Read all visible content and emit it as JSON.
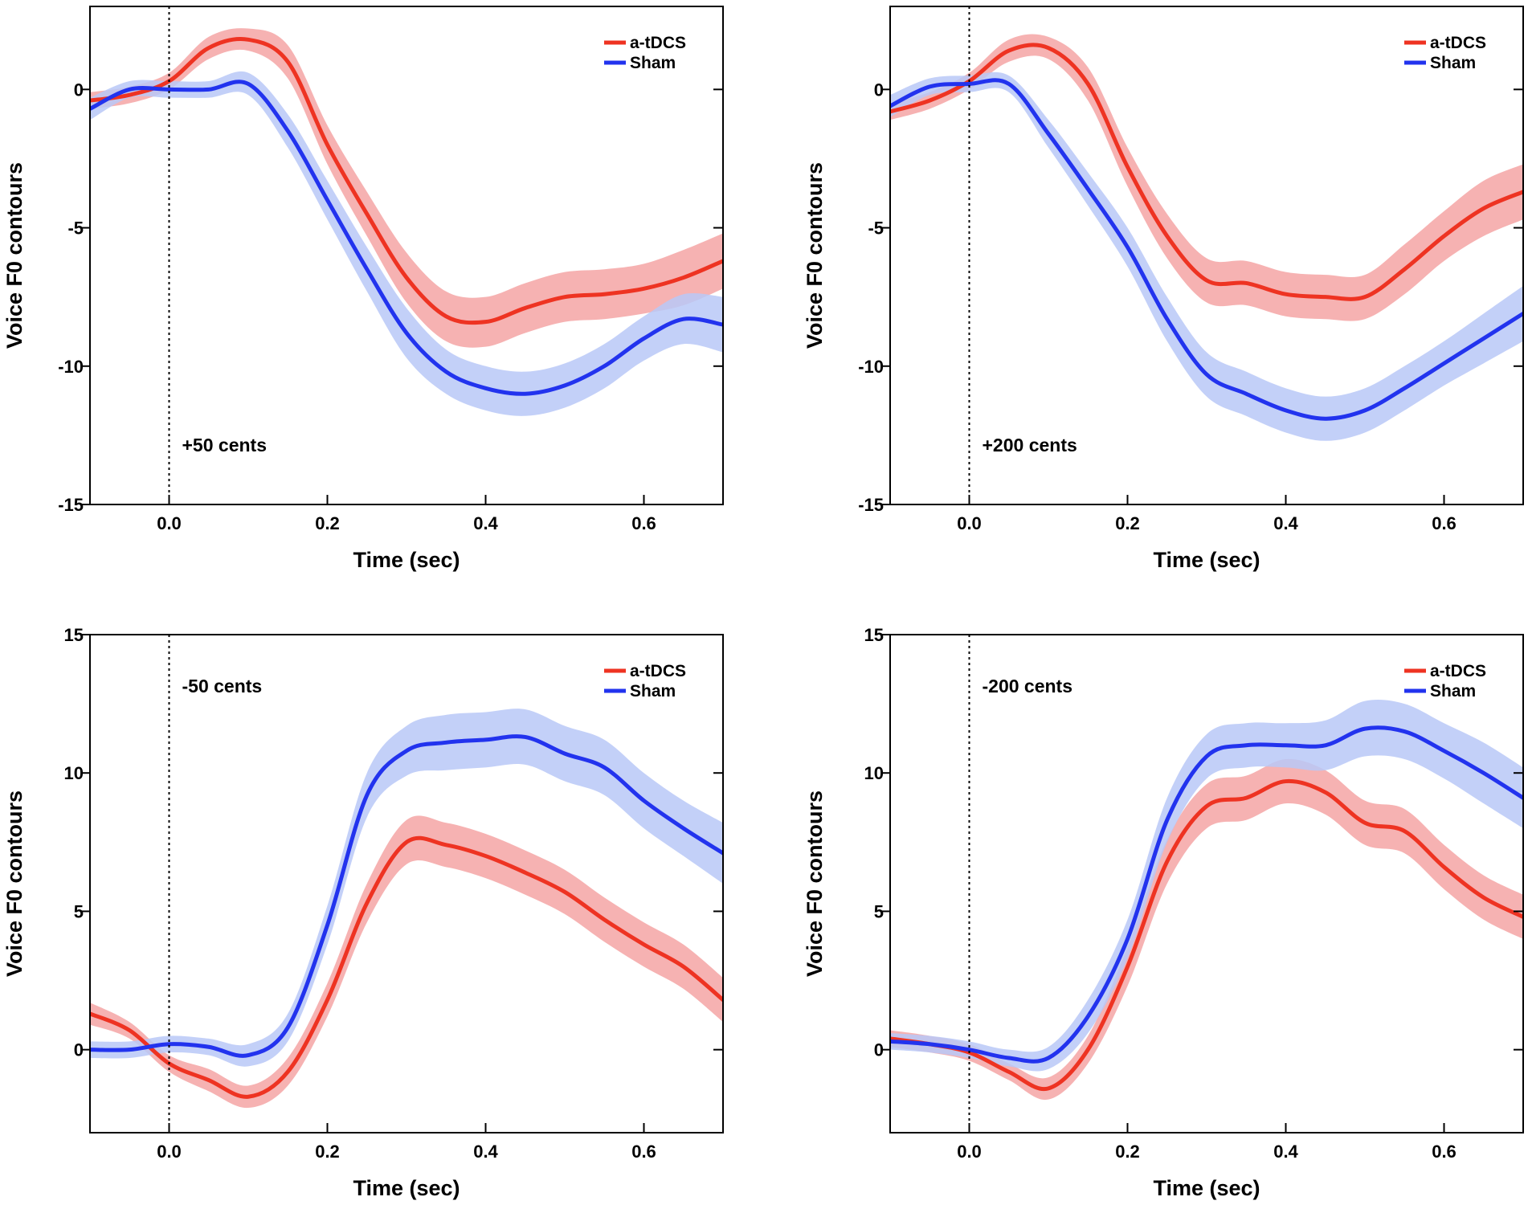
{
  "figure_title": "",
  "chart_data": [
    {
      "type": "line",
      "title": "",
      "annotation": "+50 cents",
      "xlabel": "Time (sec)",
      "ylabel": "Voice F0 contours",
      "xlim": [
        -0.1,
        0.7
      ],
      "ylim": [
        -15,
        3
      ],
      "xticks": [
        0.0,
        0.2,
        0.4,
        0.6
      ],
      "xtick_labels": [
        "0.0",
        "0.2",
        "0.4",
        "0.6"
      ],
      "yticks": [
        -15,
        -10,
        -5,
        0
      ],
      "ytick_labels": [
        "-15",
        "-10",
        "-5",
        "0"
      ],
      "onset_line_x": 0.0,
      "legend_position": "top-right",
      "series": [
        {
          "name": "a-tDCS",
          "color": "#ee3322",
          "band_color": "#f5a5a5",
          "x": [
            -0.1,
            -0.05,
            0.0,
            0.05,
            0.1,
            0.15,
            0.2,
            0.25,
            0.3,
            0.35,
            0.4,
            0.45,
            0.5,
            0.55,
            0.6,
            0.65,
            0.7
          ],
          "y": [
            -0.4,
            -0.2,
            0.3,
            1.5,
            1.8,
            1.0,
            -2.0,
            -4.5,
            -6.8,
            -8.2,
            -8.4,
            -7.9,
            -7.5,
            -7.4,
            -7.2,
            -6.8,
            -6.2
          ],
          "sem": [
            0.3,
            0.3,
            0.3,
            0.4,
            0.4,
            0.6,
            0.7,
            0.8,
            0.9,
            0.9,
            0.9,
            0.9,
            0.9,
            0.9,
            0.9,
            1.0,
            1.0
          ]
        },
        {
          "name": "Sham",
          "color": "#2233ee",
          "band_color": "#b8c8f7",
          "x": [
            -0.1,
            -0.05,
            0.0,
            0.05,
            0.1,
            0.15,
            0.2,
            0.25,
            0.3,
            0.35,
            0.4,
            0.45,
            0.5,
            0.55,
            0.6,
            0.65,
            0.7
          ],
          "y": [
            -0.7,
            0.0,
            0.0,
            0.0,
            0.2,
            -1.5,
            -4.0,
            -6.5,
            -8.8,
            -10.2,
            -10.8,
            -11.0,
            -10.7,
            -10.0,
            -9.0,
            -8.3,
            -8.5
          ],
          "sem": [
            0.4,
            0.3,
            0.3,
            0.3,
            0.4,
            0.6,
            0.7,
            0.8,
            0.9,
            0.8,
            0.8,
            0.8,
            0.8,
            0.8,
            0.8,
            0.9,
            1.0
          ]
        }
      ]
    },
    {
      "type": "line",
      "title": "",
      "annotation": "+200 cents",
      "xlabel": "Time (sec)",
      "ylabel": "Voice F0 contours",
      "xlim": [
        -0.1,
        0.7
      ],
      "ylim": [
        -15,
        3
      ],
      "xticks": [
        0.0,
        0.2,
        0.4,
        0.6
      ],
      "xtick_labels": [
        "0.0",
        "0.2",
        "0.4",
        "0.6"
      ],
      "yticks": [
        -15,
        -10,
        -5,
        0
      ],
      "ytick_labels": [
        "-15",
        "-10",
        "-5",
        "0"
      ],
      "onset_line_x": 0.0,
      "legend_position": "top-right",
      "series": [
        {
          "name": "a-tDCS",
          "color": "#ee3322",
          "band_color": "#f5a5a5",
          "x": [
            -0.1,
            -0.05,
            0.0,
            0.05,
            0.1,
            0.15,
            0.2,
            0.25,
            0.3,
            0.35,
            0.4,
            0.45,
            0.5,
            0.55,
            0.6,
            0.65,
            0.7
          ],
          "y": [
            -0.8,
            -0.4,
            0.3,
            1.4,
            1.5,
            0.2,
            -2.8,
            -5.3,
            -6.9,
            -7.0,
            -7.4,
            -7.5,
            -7.5,
            -6.5,
            -5.3,
            -4.3,
            -3.7
          ],
          "sem": [
            0.3,
            0.3,
            0.3,
            0.4,
            0.4,
            0.6,
            0.7,
            0.8,
            0.8,
            0.8,
            0.8,
            0.8,
            0.8,
            0.9,
            0.9,
            1.0,
            1.0
          ]
        },
        {
          "name": "Sham",
          "color": "#2233ee",
          "band_color": "#b8c8f7",
          "x": [
            -0.1,
            -0.05,
            0.0,
            0.05,
            0.1,
            0.15,
            0.2,
            0.25,
            0.3,
            0.35,
            0.4,
            0.45,
            0.5,
            0.55,
            0.6,
            0.65,
            0.7
          ],
          "y": [
            -0.6,
            0.1,
            0.2,
            0.2,
            -1.6,
            -3.6,
            -5.7,
            -8.3,
            -10.3,
            -11.0,
            -11.6,
            -11.9,
            -11.6,
            -10.8,
            -9.9,
            -9.0,
            -8.1
          ],
          "sem": [
            0.4,
            0.3,
            0.3,
            0.3,
            0.5,
            0.6,
            0.7,
            0.8,
            0.8,
            0.8,
            0.8,
            0.8,
            0.8,
            0.8,
            0.8,
            0.9,
            1.0
          ]
        }
      ]
    },
    {
      "type": "line",
      "title": "",
      "annotation": "-50 cents",
      "xlabel": "Time (sec)",
      "ylabel": "Voice F0 contours",
      "xlim": [
        -0.1,
        0.7
      ],
      "ylim": [
        -3,
        15
      ],
      "xticks": [
        0.0,
        0.2,
        0.4,
        0.6
      ],
      "xtick_labels": [
        "0.0",
        "0.2",
        "0.4",
        "0.6"
      ],
      "yticks": [
        0,
        5,
        10,
        15
      ],
      "ytick_labels": [
        "0",
        "5",
        "10",
        "15"
      ],
      "onset_line_x": 0.0,
      "legend_position": "top-right",
      "series": [
        {
          "name": "a-tDCS",
          "color": "#ee3322",
          "band_color": "#f5a5a5",
          "x": [
            -0.1,
            -0.05,
            0.0,
            0.05,
            0.1,
            0.15,
            0.2,
            0.25,
            0.3,
            0.35,
            0.4,
            0.45,
            0.5,
            0.55,
            0.6,
            0.65,
            0.7
          ],
          "y": [
            1.3,
            0.7,
            -0.5,
            -1.1,
            -1.7,
            -0.8,
            1.8,
            5.3,
            7.5,
            7.4,
            7.0,
            6.4,
            5.7,
            4.7,
            3.8,
            3.0,
            1.8
          ],
          "sem": [
            0.4,
            0.3,
            0.3,
            0.4,
            0.4,
            0.5,
            0.6,
            0.7,
            0.8,
            0.8,
            0.8,
            0.8,
            0.8,
            0.8,
            0.8,
            0.8,
            0.8
          ]
        },
        {
          "name": "Sham",
          "color": "#2233ee",
          "band_color": "#b8c8f7",
          "x": [
            -0.1,
            -0.05,
            0.0,
            0.05,
            0.1,
            0.15,
            0.2,
            0.25,
            0.3,
            0.35,
            0.4,
            0.45,
            0.5,
            0.55,
            0.6,
            0.65,
            0.7
          ],
          "y": [
            0.0,
            0.0,
            0.2,
            0.1,
            -0.2,
            0.8,
            4.5,
            9.2,
            10.8,
            11.1,
            11.2,
            11.3,
            10.7,
            10.2,
            9.0,
            8.0,
            7.1
          ],
          "sem": [
            0.3,
            0.3,
            0.3,
            0.3,
            0.4,
            0.5,
            0.7,
            0.8,
            0.9,
            1.0,
            1.0,
            1.0,
            1.0,
            1.0,
            1.0,
            1.0,
            1.1
          ]
        }
      ]
    },
    {
      "type": "line",
      "title": "",
      "annotation": "-200 cents",
      "xlabel": "Time (sec)",
      "ylabel": "Voice F0 contours",
      "xlim": [
        -0.1,
        0.7
      ],
      "ylim": [
        -3,
        15
      ],
      "xticks": [
        0.0,
        0.2,
        0.4,
        0.6
      ],
      "xtick_labels": [
        "0.0",
        "0.2",
        "0.4",
        "0.6"
      ],
      "yticks": [
        0,
        5,
        10,
        15
      ],
      "ytick_labels": [
        "0",
        "5",
        "10",
        "15"
      ],
      "onset_line_x": 0.0,
      "legend_position": "top-right",
      "series": [
        {
          "name": "a-tDCS",
          "color": "#ee3322",
          "band_color": "#f5a5a5",
          "x": [
            -0.1,
            -0.05,
            0.0,
            0.05,
            0.1,
            0.15,
            0.2,
            0.25,
            0.3,
            0.35,
            0.4,
            0.45,
            0.5,
            0.55,
            0.6,
            0.65,
            0.7
          ],
          "y": [
            0.4,
            0.2,
            -0.1,
            -0.8,
            -1.4,
            0.0,
            3.0,
            6.8,
            8.8,
            9.1,
            9.7,
            9.3,
            8.2,
            7.9,
            6.6,
            5.5,
            4.8
          ],
          "sem": [
            0.3,
            0.3,
            0.3,
            0.3,
            0.4,
            0.5,
            0.7,
            0.8,
            0.8,
            0.8,
            0.8,
            0.8,
            0.8,
            0.8,
            0.8,
            0.8,
            0.8
          ]
        },
        {
          "name": "Sham",
          "color": "#2233ee",
          "band_color": "#b8c8f7",
          "x": [
            -0.1,
            -0.05,
            0.0,
            0.05,
            0.1,
            0.15,
            0.2,
            0.25,
            0.3,
            0.35,
            0.4,
            0.45,
            0.5,
            0.55,
            0.6,
            0.65,
            0.7
          ],
          "y": [
            0.3,
            0.2,
            0.0,
            -0.3,
            -0.3,
            1.2,
            4.0,
            8.3,
            10.6,
            11.0,
            11.0,
            11.0,
            11.6,
            11.5,
            10.8,
            10.0,
            9.1
          ],
          "sem": [
            0.3,
            0.3,
            0.3,
            0.3,
            0.4,
            0.6,
            0.7,
            0.8,
            0.8,
            0.8,
            0.8,
            0.9,
            1.0,
            1.0,
            1.0,
            1.1,
            1.1
          ]
        }
      ]
    }
  ]
}
